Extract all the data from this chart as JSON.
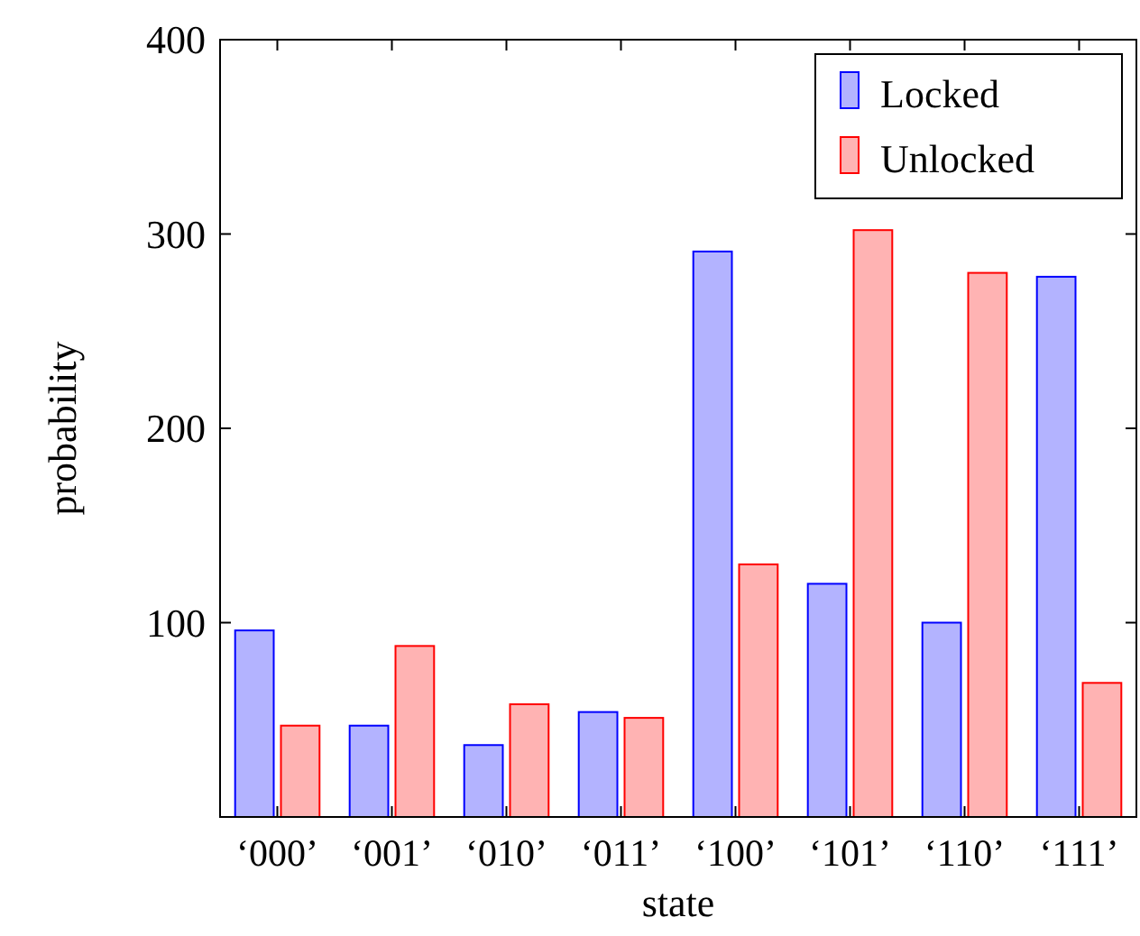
{
  "chart_data": {
    "type": "bar",
    "xlabel": "state",
    "ylabel": "probability",
    "categories": [
      "‘000’",
      "‘001’",
      "‘010’",
      "‘011’",
      "‘100’",
      "‘101’",
      "‘110’",
      "‘111’"
    ],
    "series": [
      {
        "name": "Locked",
        "color": "#b3b3ff",
        "values": [
          96,
          47,
          37,
          54,
          291,
          120,
          100,
          278
        ]
      },
      {
        "name": "Unlocked",
        "color": "#ffb3b3",
        "values": [
          47,
          88,
          58,
          51,
          130,
          302,
          280,
          69
        ]
      }
    ],
    "ylim": [
      0,
      400
    ],
    "yticks": [
      100,
      200,
      300,
      400
    ],
    "grid": false,
    "legend": "top right"
  }
}
